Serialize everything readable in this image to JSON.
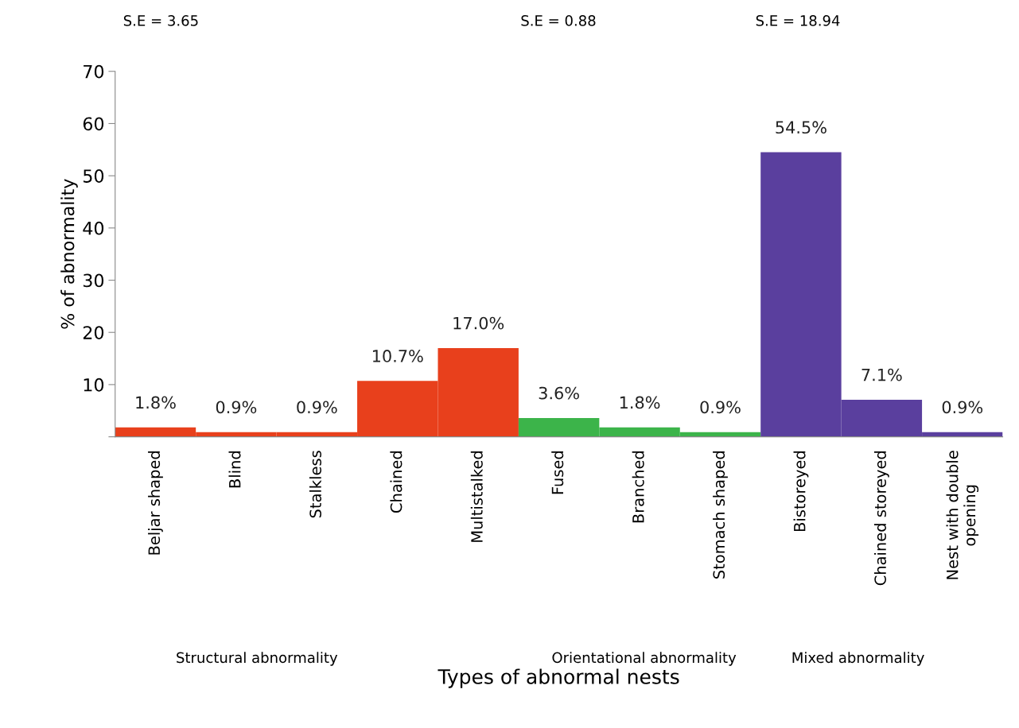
{
  "chart_data": {
    "type": "bar",
    "xlabel": "Types of abnormal nests",
    "ylabel": "% of abnormality",
    "categories": [
      "Beljar shaped",
      "Blind",
      "Stalkless",
      "Chained",
      "Multistalked",
      "Fused",
      "Branched",
      "Stomach shaped",
      "Bistoreyed",
      "Chained storeyed",
      "Nest with double\nopening"
    ],
    "values": [
      1.8,
      0.9,
      0.9,
      10.7,
      17.0,
      3.6,
      1.8,
      0.9,
      54.5,
      7.1,
      0.9
    ],
    "value_labels": [
      "1.8%",
      "0.9%",
      "0.9%",
      "10.7%",
      "17.0%",
      "3.6%",
      "1.8%",
      "0.9%",
      "54.5%",
      "7.1%",
      "0.9%"
    ],
    "colors": [
      "#e8401c",
      "#e8401c",
      "#e8401c",
      "#e8401c",
      "#e8401c",
      "#3cb44a",
      "#3cb44a",
      "#3cb44a",
      "#5a3f9e",
      "#5a3f9e",
      "#5a3f9e"
    ],
    "ylim": [
      0,
      70
    ],
    "yticks": [
      {
        "value": 0,
        "label": null
      },
      10,
      20,
      30,
      40,
      50,
      60,
      70
    ],
    "grid": false,
    "legend": false,
    "annotations": [
      "S.E = 3.65",
      "S.E = 0.88",
      "S.E = 18.94",
      "Structural abnormality",
      "Orientational abnormality",
      "Mixed abnormality"
    ]
  }
}
